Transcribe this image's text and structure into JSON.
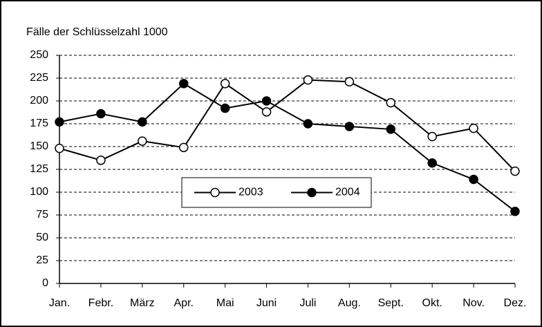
{
  "chart_data": {
    "type": "line",
    "title": "Fälle der Schlüsselzahl 1000",
    "categories": [
      "Jan.",
      "Febr.",
      "März",
      "Apr.",
      "Mai",
      "Juni",
      "Juli",
      "Aug.",
      "Sept.",
      "Okt.",
      "Nov.",
      "Dez."
    ],
    "series": [
      {
        "name": "2003",
        "color": "#000000",
        "marker_fill": "#ffffff",
        "values": [
          148,
          135,
          156,
          149,
          219,
          188,
          223,
          221,
          198,
          161,
          170,
          123
        ]
      },
      {
        "name": "2004",
        "color": "#000000",
        "marker_fill": "#000000",
        "values": [
          177,
          186,
          177,
          219,
          192,
          200,
          175,
          172,
          169,
          132,
          114,
          79
        ]
      }
    ],
    "ylim": [
      0,
      250
    ],
    "yticks": [
      0,
      25,
      50,
      75,
      100,
      125,
      150,
      175,
      200,
      225,
      250
    ],
    "grid": true,
    "legend": "center"
  }
}
